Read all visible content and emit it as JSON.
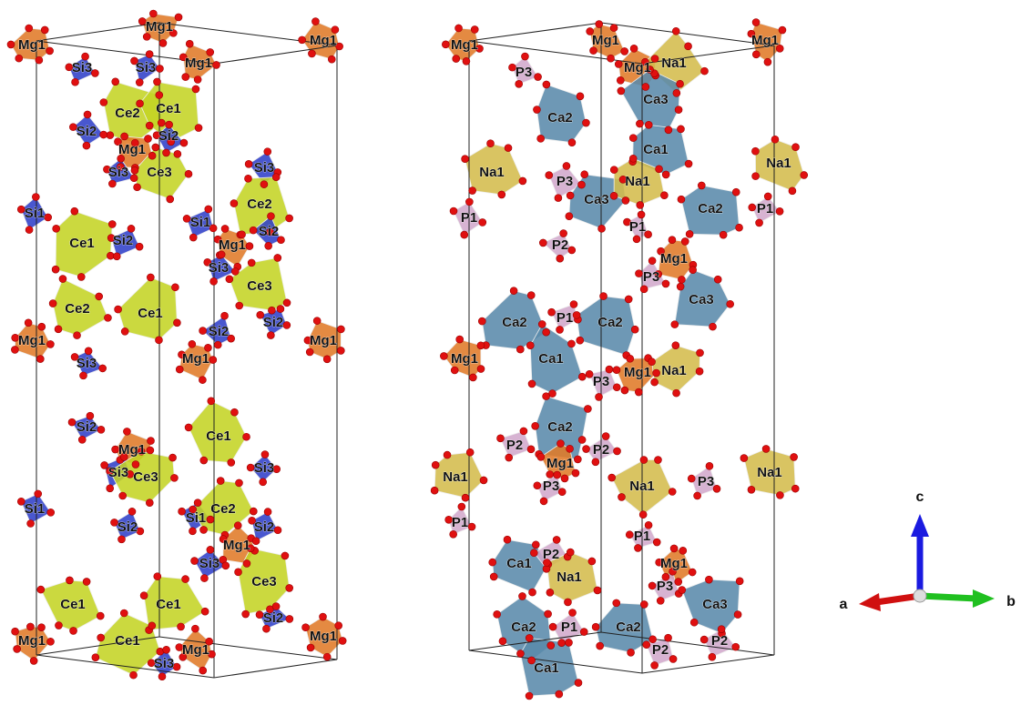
{
  "structures": [
    {
      "labels": [
        "Mg1",
        "Mg1",
        "Mg1",
        "Mg1",
        "Si3",
        "Si3",
        "Ce2",
        "Ce1",
        "Si2",
        "Mg1",
        "Si2",
        "Si3",
        "Ce3",
        "Si3",
        "Ce2",
        "Si1",
        "Ce1",
        "Si2",
        "Si1",
        "Mg1",
        "Si2",
        "Si3",
        "Ce3",
        "Ce2",
        "Ce1",
        "Si2",
        "Si2",
        "Mg1",
        "Mg1",
        "Si3",
        "Mg1",
        "Si2",
        "Mg1",
        "Si3",
        "Ce3",
        "Ce1",
        "Si3",
        "Si1",
        "Si2",
        "Si1",
        "Ce2",
        "Mg1",
        "Si2",
        "Si3",
        "Ce3",
        "Ce1",
        "Ce1",
        "Mg1",
        "Ce1",
        "Mg1",
        "Mg1",
        "Si2",
        "Si3"
      ]
    },
    {
      "labels": [
        "Mg1",
        "Mg1",
        "Mg1",
        "Na1",
        "Mg1",
        "P3",
        "Ca3",
        "Ca2",
        "Ca1",
        "Na1",
        "P3",
        "Ca3",
        "Na1",
        "Na1",
        "P1",
        "P1",
        "Ca2",
        "P1",
        "P2",
        "Mg1",
        "P3",
        "Ca3",
        "Ca2",
        "P1",
        "Ca2",
        "Mg1",
        "Ca1",
        "Mg1",
        "Na1",
        "P3",
        "Ca2",
        "P2",
        "P2",
        "Mg1",
        "Na1",
        "Na1",
        "Na1",
        "P3",
        "P3",
        "P1",
        "P1",
        "Ca1",
        "P2",
        "Na1",
        "Mg1",
        "P3",
        "Ca3",
        "Ca2",
        "P1",
        "Ca2",
        "P2",
        "P2",
        "Ca1"
      ]
    }
  ],
  "axes": {
    "a": "a",
    "b": "b",
    "c": "c"
  }
}
